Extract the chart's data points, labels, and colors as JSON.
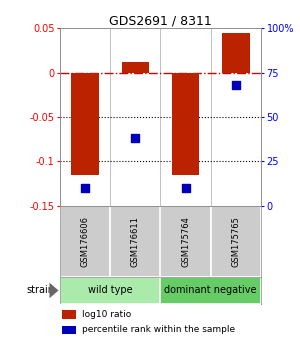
{
  "title": "GDS2691 / 8311",
  "samples": [
    "GSM176606",
    "GSM176611",
    "GSM175764",
    "GSM175765"
  ],
  "log10_ratio": [
    -0.115,
    0.012,
    -0.115,
    0.045
  ],
  "percentile_rank": [
    10,
    38,
    10,
    68
  ],
  "bar_color": "#bb2200",
  "dot_color": "#0000bb",
  "ylim_left": [
    -0.15,
    0.05
  ],
  "ylim_right": [
    0,
    100
  ],
  "yticks_left": [
    0.05,
    0.0,
    -0.05,
    -0.1,
    -0.15
  ],
  "yticks_right": [
    100,
    75,
    50,
    25,
    0
  ],
  "ytick_labels_left": [
    "0.05",
    "0",
    "-0.05",
    "-0.1",
    "-0.15"
  ],
  "ytick_labels_right": [
    "100%",
    "75",
    "50",
    "25",
    "0"
  ],
  "groups": [
    {
      "label": "wild type",
      "start": 0,
      "end": 2,
      "color": "#aaeaaa"
    },
    {
      "label": "dominant negative",
      "start": 2,
      "end": 4,
      "color": "#66cc66"
    }
  ],
  "legend_items": [
    {
      "color": "#bb2200",
      "label": "log10 ratio"
    },
    {
      "color": "#0000bb",
      "label": "percentile rank within the sample"
    }
  ],
  "strain_label": "strain",
  "hline_zero_color": "#cc0000",
  "hline_zero_style": "-.",
  "dotted_line_color": "#000000",
  "background_color": "#ffffff"
}
